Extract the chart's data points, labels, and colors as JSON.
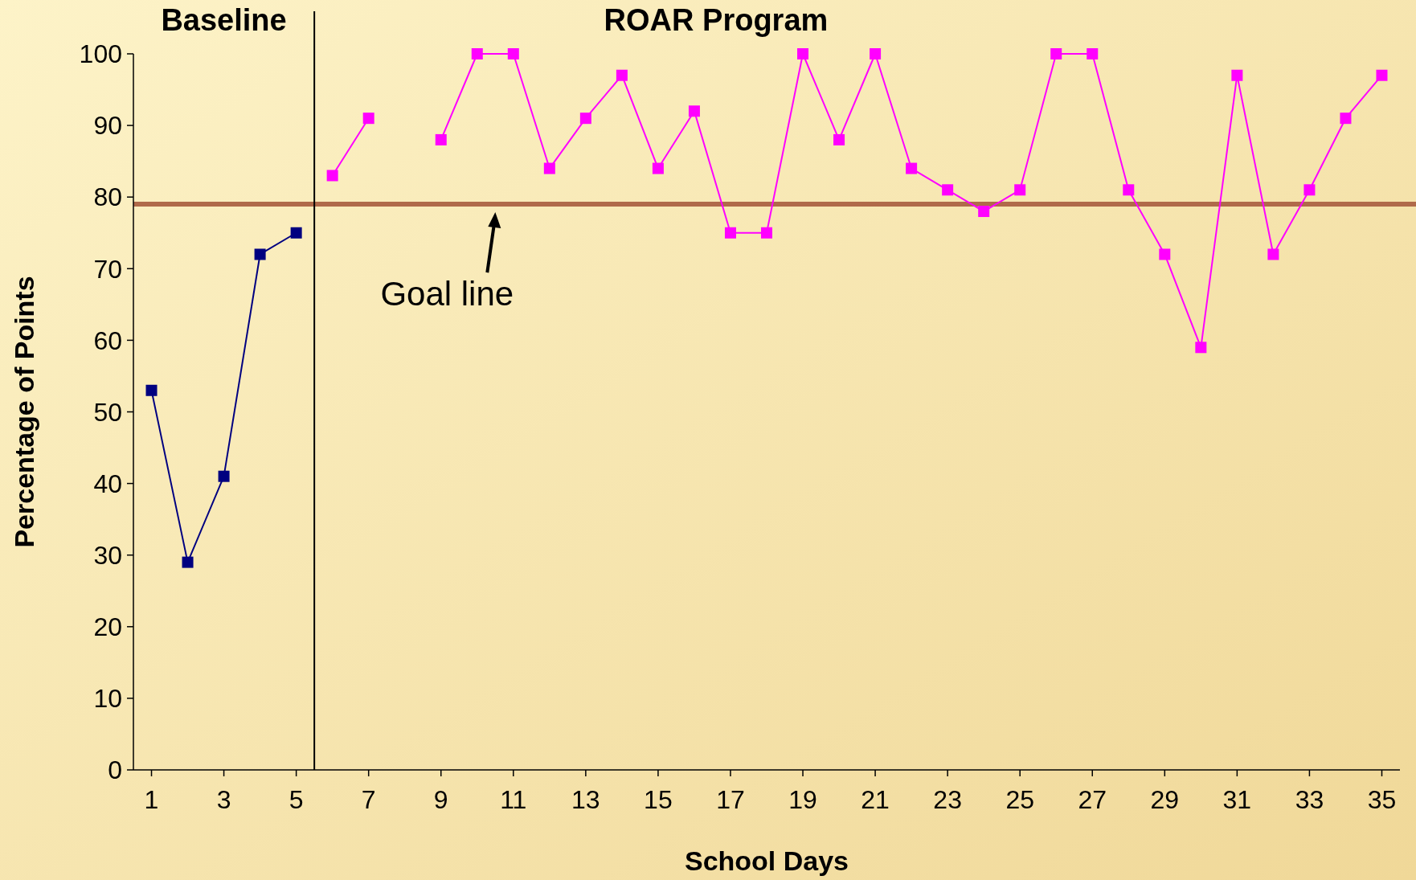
{
  "chart_data": {
    "type": "line",
    "xlabel": "School Days",
    "ylabel": "Percentage of Points",
    "x": [
      1,
      2,
      3,
      4,
      5,
      6,
      7,
      8,
      9,
      10,
      11,
      12,
      13,
      14,
      15,
      16,
      17,
      18,
      19,
      20,
      21,
      22,
      23,
      24,
      25,
      26,
      27,
      28,
      29,
      30,
      31,
      32,
      33,
      34,
      35
    ],
    "series": [
      {
        "color": "#000080",
        "values": [
          53,
          29,
          41,
          72,
          75,
          null,
          null,
          null,
          null,
          null,
          null,
          null,
          null,
          null,
          null,
          null,
          null,
          null,
          null,
          null,
          null,
          null,
          null,
          null,
          null,
          null,
          null,
          null,
          null,
          null,
          null,
          null,
          null,
          null,
          null
        ]
      },
      {
        "color": "#ff00ff",
        "values": [
          null,
          null,
          null,
          null,
          null,
          83,
          91,
          null,
          88,
          100,
          100,
          84,
          91,
          97,
          84,
          92,
          75,
          75,
          100,
          88,
          100,
          84,
          81,
          78,
          81,
          100,
          100,
          81,
          72,
          59,
          97,
          72,
          81,
          91,
          97
        ]
      }
    ],
    "xlim": [
      0.5,
      35.5
    ],
    "xticks": [
      1,
      3,
      5,
      7,
      9,
      11,
      13,
      15,
      17,
      19,
      21,
      23,
      25,
      27,
      29,
      31,
      33,
      35
    ],
    "ylim": [
      0,
      100
    ],
    "yticks": [
      0,
      10,
      20,
      30,
      40,
      50,
      60,
      70,
      80,
      90,
      100
    ],
    "ref_lines": [
      {
        "axis": "y",
        "value": 79,
        "color": "#b06a4a"
      },
      {
        "axis": "x",
        "value": 5.5,
        "color": "#000000"
      }
    ],
    "annotations": [
      "Baseline",
      "ROAR Program",
      {
        "text": "Goal line",
        "x": 10.5,
        "y": 79
      }
    ],
    "marker": "square",
    "line_style": "solid",
    "grid": false
  }
}
